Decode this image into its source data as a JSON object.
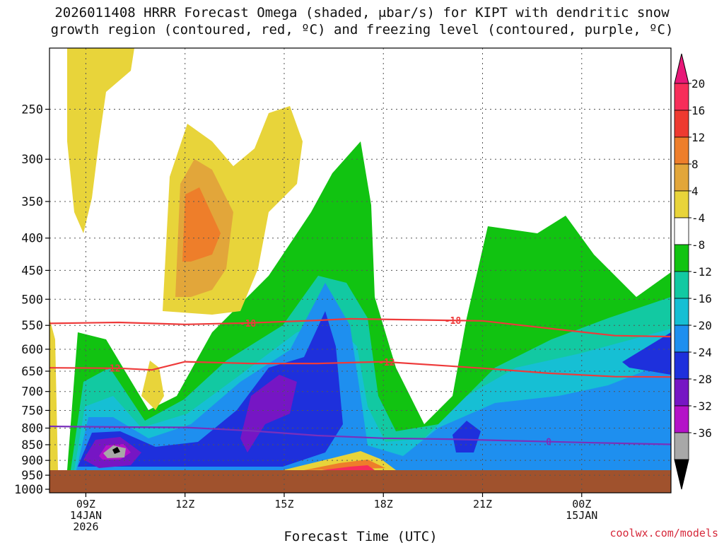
{
  "title": {
    "line1": "2026011408 HRRR Forecast Omega (shaded, μbar/s) for KIPT with dendritic snow",
    "line2": "growth region (contoured, red, ºC) and freezing level (contoured, purple, ºC)"
  },
  "chart_data": {
    "type": "area",
    "xlabel": "Forecast Time (UTC)",
    "ylabel": "",
    "x_range_hours": [
      7.9,
      26.7
    ],
    "y_levels": [
      250,
      300,
      350,
      400,
      450,
      500,
      550,
      600,
      650,
      700,
      750,
      800,
      850,
      900,
      950,
      1000
    ],
    "y_ticks": [
      "250",
      "300",
      "350",
      "400",
      "450",
      "500",
      "550",
      "600",
      "650",
      "700",
      "750",
      "800",
      "850",
      "900",
      "950",
      "1000"
    ],
    "x_ticks": [
      {
        "hour": 9,
        "lines": [
          "09Z",
          "14JAN",
          "2026"
        ]
      },
      {
        "hour": 12,
        "lines": [
          "12Z"
        ]
      },
      {
        "hour": 15,
        "lines": [
          "15Z"
        ]
      },
      {
        "hour": 18,
        "lines": [
          "18Z"
        ]
      },
      {
        "hour": 21,
        "lines": [
          "21Z"
        ]
      },
      {
        "hour": 24,
        "lines": [
          "00Z",
          "15JAN"
        ]
      }
    ],
    "grid": true,
    "colorbar": {
      "labels": [
        "20",
        "16",
        "12",
        "8",
        "4",
        "-4",
        "-8",
        "-12",
        "-16",
        "-20",
        "-24",
        "-28",
        "-32",
        "-36"
      ],
      "colors": [
        "#f72d5a",
        "#ee3a30",
        "#ee7e2a",
        "#e2a63a",
        "#e8d43a",
        "#ffffff",
        "#11c311",
        "#12c9a2",
        "#16bfd4",
        "#1e8fef",
        "#1e30dc",
        "#7616c4",
        "#b412c8",
        "#a8a8a8"
      ],
      "arrow_top_color": "#e81878",
      "arrow_bottom_color": "#000000"
    },
    "dendritic_contours": [
      {
        "label": "-18",
        "color": "#ee3a3a",
        "points": [
          [
            7.9,
            546
          ],
          [
            10,
            544
          ],
          [
            12,
            548
          ],
          [
            14,
            545
          ],
          [
            16,
            540
          ],
          [
            17,
            537
          ],
          [
            20,
            540
          ],
          [
            21,
            541
          ],
          [
            23,
            556
          ],
          [
            25,
            571
          ],
          [
            26.7,
            573
          ]
        ]
      },
      {
        "label": "-12",
        "color": "#ee3a3a",
        "points": [
          [
            7.9,
            642
          ],
          [
            10,
            643
          ],
          [
            11,
            647
          ],
          [
            12,
            628
          ],
          [
            14,
            632
          ],
          [
            16,
            632
          ],
          [
            18,
            628
          ],
          [
            20,
            638
          ],
          [
            21,
            643
          ],
          [
            23,
            655
          ],
          [
            25,
            663
          ],
          [
            26.7,
            664
          ]
        ]
      }
    ],
    "freezing_contour": {
      "label": "0",
      "color": "#7a2fbc",
      "points": [
        [
          7.9,
          795
        ],
        [
          10,
          797
        ],
        [
          12,
          798
        ],
        [
          14,
          808
        ],
        [
          16,
          822
        ],
        [
          18,
          830
        ],
        [
          20,
          833
        ],
        [
          22,
          838
        ],
        [
          24,
          843
        ],
        [
          26.7,
          849
        ]
      ]
    },
    "terrain_color": "#a0522d",
    "credit": "coolwx.com/models"
  }
}
